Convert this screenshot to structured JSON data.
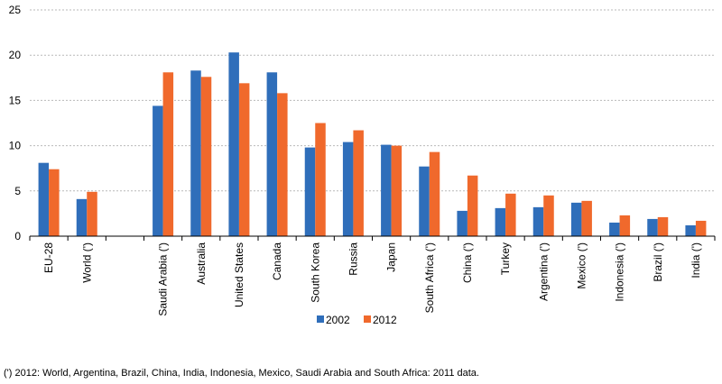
{
  "chart_data": {
    "type": "bar",
    "categories": [
      "EU-28",
      "World  (')",
      "",
      "Saudi Arabia (')",
      "Australia",
      "United States",
      "Canada",
      "South Korea",
      "Russia",
      "Japan",
      "South Africa (')",
      "China (')",
      "Turkey",
      "Argentina (')",
      "Mexico (')",
      "Indonesia (')",
      "Brazil (')",
      "India (')"
    ],
    "series": [
      {
        "name": "2002",
        "color": "#2f6eba",
        "values": [
          8.1,
          4.1,
          null,
          14.4,
          18.3,
          20.3,
          18.1,
          9.8,
          10.4,
          10.1,
          7.7,
          2.8,
          3.1,
          3.2,
          3.7,
          1.5,
          1.9,
          1.2
        ]
      },
      {
        "name": "2012",
        "color": "#f0692c",
        "values": [
          7.4,
          4.9,
          null,
          18.1,
          17.6,
          16.9,
          15.8,
          12.5,
          11.7,
          10.0,
          9.3,
          6.7,
          4.7,
          4.5,
          3.9,
          2.3,
          2.1,
          1.7
        ]
      }
    ],
    "y_ticks": [
      "0",
      "5",
      "10",
      "15",
      "20",
      "25"
    ],
    "ylim": [
      0,
      25
    ],
    "grid": true,
    "legend_position": "bottom-center"
  },
  "footnote": "(') 2012: World, Argentina, Brazil, China, India, Indonesia, Mexico, Saudi Arabia and South Africa: 2011 data."
}
